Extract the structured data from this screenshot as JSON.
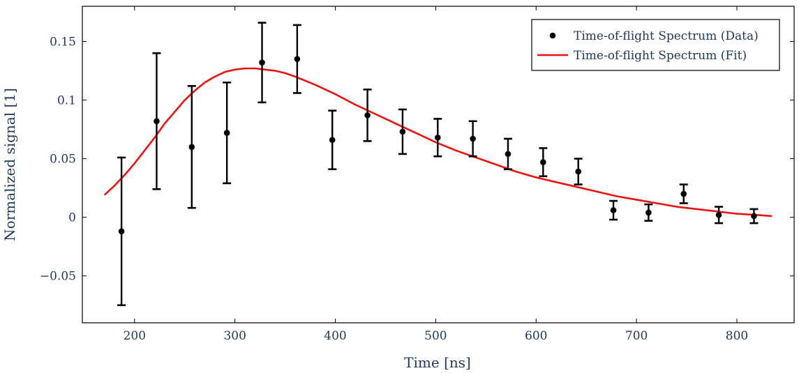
{
  "chart_data": {
    "type": "scatter",
    "title": "",
    "xlabel": "Time [ns]",
    "ylabel": "Normalized signal [1]",
    "xlim": [
      148,
      857
    ],
    "ylim": [
      -0.09,
      0.18
    ],
    "x_ticks": [
      200,
      300,
      400,
      500,
      600,
      700,
      800
    ],
    "y_ticks": [
      -0.05,
      0,
      0.05,
      0.1,
      0.15
    ],
    "x_tick_labels": [
      "200",
      "300",
      "400",
      "500",
      "600",
      "700",
      "800"
    ],
    "y_tick_labels": [
      "−0.05",
      "0",
      "0.05",
      "0.1",
      "0.15"
    ],
    "grid": false,
    "legend_position": "top-right",
    "series": [
      {
        "name": "Time-of-flight Spectrum (Data)",
        "kind": "errorbar",
        "color": "#000000",
        "x": [
          187,
          222,
          257,
          292,
          327,
          362,
          397,
          432,
          467,
          502,
          537,
          572,
          607,
          642,
          677,
          712,
          747,
          782,
          817
        ],
        "y": [
          -0.012,
          0.082,
          0.06,
          0.072,
          0.132,
          0.135,
          0.066,
          0.087,
          0.073,
          0.068,
          0.067,
          0.054,
          0.047,
          0.039,
          0.006,
          0.004,
          0.02,
          0.002,
          0.001
        ],
        "yerr": [
          0.063,
          0.058,
          0.052,
          0.043,
          0.034,
          0.029,
          0.025,
          0.022,
          0.019,
          0.016,
          0.015,
          0.013,
          0.012,
          0.011,
          0.008,
          0.007,
          0.008,
          0.007,
          0.006
        ]
      },
      {
        "name": "Time-of-flight Spectrum (Fit)",
        "kind": "line",
        "color": "#ee1111",
        "x": [
          170,
          180,
          190,
          200,
          210,
          220,
          230,
          240,
          250,
          260,
          270,
          280,
          290,
          300,
          310,
          320,
          330,
          340,
          350,
          360,
          380,
          400,
          420,
          440,
          460,
          480,
          500,
          520,
          540,
          560,
          580,
          600,
          620,
          640,
          660,
          680,
          700,
          720,
          740,
          760,
          780,
          800,
          820,
          835
        ],
        "y": [
          0.019,
          0.027,
          0.036,
          0.046,
          0.057,
          0.068,
          0.08,
          0.09,
          0.1,
          0.108,
          0.115,
          0.12,
          0.124,
          0.126,
          0.127,
          0.127,
          0.126,
          0.125,
          0.123,
          0.12,
          0.113,
          0.105,
          0.096,
          0.088,
          0.08,
          0.072,
          0.064,
          0.057,
          0.051,
          0.045,
          0.039,
          0.034,
          0.03,
          0.026,
          0.022,
          0.018,
          0.015,
          0.012,
          0.009,
          0.007,
          0.005,
          0.003,
          0.002,
          0.001
        ]
      }
    ]
  }
}
